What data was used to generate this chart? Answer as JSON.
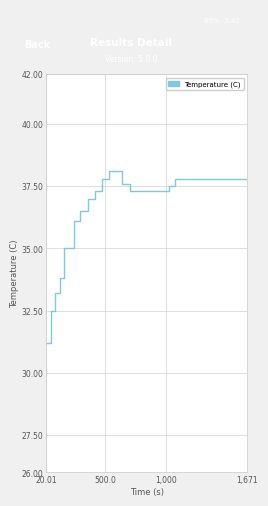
{
  "title": "Results Detail",
  "subtitle": "Version: 5.0.0",
  "xlabel": "Time (s)",
  "ylabel": "Temperature (C)",
  "legend_label": "Temperature (C)",
  "line_color": "#7ec8e3",
  "background_color": "#f0f0f0",
  "plot_bg_color": "#ffffff",
  "header_bg_color": "#2c5f8a",
  "header_text_color": "#ffffff",
  "grid_color": "#cccccc",
  "xlim": [
    20.01,
    1671
  ],
  "ylim": [
    26.0,
    42.0
  ],
  "yticks": [
    26.0,
    27.5,
    30.0,
    32.5,
    35.0,
    37.5,
    40.0,
    42.0
  ],
  "ytick_labels": [
    "26.00",
    "27.50",
    "30.00",
    "32.50",
    "35.00",
    "37.50",
    "40.00",
    "42.00"
  ],
  "xticks": [
    20.01,
    500.0,
    1000.0,
    1671.0
  ],
  "xtick_labels": [
    "20.01",
    "500.0",
    "1,000",
    "1,671"
  ],
  "status_bar_color": "#1a1a2e",
  "axis_label_color": "#555555",
  "tick_label_color": "#555555",
  "time_pts": [
    20.01,
    55,
    55,
    90,
    90,
    130,
    130,
    165,
    165,
    200,
    200,
    245,
    245,
    295,
    295,
    360,
    360,
    420,
    420,
    480,
    480,
    535,
    535,
    595,
    595,
    645,
    645,
    710,
    710,
    785,
    785,
    875,
    875,
    965,
    965,
    1025,
    1025,
    1080,
    1080,
    1671
  ],
  "temp_pts": [
    31.2,
    31.2,
    32.5,
    32.5,
    33.2,
    33.2,
    33.8,
    33.8,
    35.0,
    35.0,
    35.0,
    35.0,
    36.1,
    36.1,
    36.5,
    36.5,
    37.0,
    37.0,
    37.3,
    37.3,
    37.8,
    37.8,
    38.1,
    38.1,
    38.1,
    38.1,
    37.6,
    37.6,
    37.3,
    37.3,
    37.3,
    37.3,
    37.3,
    37.3,
    37.3,
    37.3,
    37.5,
    37.5,
    37.8,
    37.8
  ]
}
